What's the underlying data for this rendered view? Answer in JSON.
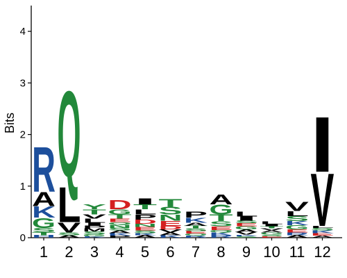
{
  "chart_data": {
    "type": "sequence-logo",
    "ylabel": "Bits",
    "ylim": [
      0,
      4.5
    ],
    "yticks": [
      "0",
      "1",
      "2",
      "3",
      "4"
    ],
    "positions": [
      "1",
      "2",
      "3",
      "4",
      "5",
      "6",
      "7",
      "8",
      "9",
      "10",
      "11",
      "12"
    ],
    "colors": {
      "hydrophobic": "#000000",
      "polar": "#22883a",
      "basic": "#1d4f9c",
      "acidic": "#d42020"
    },
    "letter_color_map": {
      "A": "#000000",
      "V": "#000000",
      "L": "#000000",
      "I": "#000000",
      "P": "#000000",
      "W": "#000000",
      "F": "#000000",
      "M": "#000000",
      "G": "#22883a",
      "S": "#22883a",
      "T": "#22883a",
      "Y": "#22883a",
      "C": "#22883a",
      "Q": "#22883a",
      "N": "#22883a",
      "K": "#1d4f9c",
      "R": "#1d4f9c",
      "H": "#1d4f9c",
      "D": "#d42020",
      "E": "#d42020"
    },
    "stacks": [
      [
        [
          "H",
          0.05
        ],
        [
          "T",
          0.06
        ],
        [
          "S",
          0.08
        ],
        [
          "G",
          0.2
        ],
        [
          "K",
          0.22
        ],
        [
          "A",
          0.28
        ],
        [
          "R",
          0.9
        ]
      ],
      [
        [
          "A",
          0.05
        ],
        [
          "S",
          0.05
        ],
        [
          "V",
          0.2
        ],
        [
          "L",
          0.7
        ],
        [
          "Q",
          1.9
        ]
      ],
      [
        [
          "K",
          0.03
        ],
        [
          "G",
          0.04
        ],
        [
          "S",
          0.05
        ],
        [
          "M",
          0.06
        ],
        [
          "P",
          0.05
        ],
        [
          "I",
          0.06
        ],
        [
          "L",
          0.08
        ],
        [
          "V",
          0.08
        ],
        [
          "T",
          0.1
        ],
        [
          "Y",
          0.1
        ]
      ],
      [
        [
          "P",
          0.04
        ],
        [
          "K",
          0.05
        ],
        [
          "A",
          0.05
        ],
        [
          "S",
          0.05
        ],
        [
          "N",
          0.06
        ],
        [
          "Q",
          0.05
        ],
        [
          "E",
          0.07
        ],
        [
          "T",
          0.08
        ],
        [
          "G",
          0.1
        ],
        [
          "D",
          0.18
        ]
      ],
      [
        [
          "A",
          0.05
        ],
        [
          "K",
          0.04
        ],
        [
          "S",
          0.05
        ],
        [
          "E",
          0.07
        ],
        [
          "N",
          0.06
        ],
        [
          "D",
          0.08
        ],
        [
          "P",
          0.1
        ],
        [
          "L",
          0.1
        ],
        [
          "T",
          0.1
        ],
        [
          "I",
          0.12
        ]
      ],
      [
        [
          "K",
          0.05
        ],
        [
          "A",
          0.05
        ],
        [
          "V",
          0.06
        ],
        [
          "D",
          0.07
        ],
        [
          "E",
          0.1
        ],
        [
          "N",
          0.12
        ],
        [
          "S",
          0.15
        ],
        [
          "T",
          0.15
        ]
      ],
      [
        [
          "R",
          0.04
        ],
        [
          "Q",
          0.04
        ],
        [
          "E",
          0.05
        ],
        [
          "S",
          0.05
        ],
        [
          "T",
          0.05
        ],
        [
          "A",
          0.06
        ],
        [
          "K",
          0.1
        ],
        [
          "P",
          0.12
        ]
      ],
      [
        [
          "R",
          0.05
        ],
        [
          "K",
          0.05
        ],
        [
          "Q",
          0.05
        ],
        [
          "E",
          0.07
        ],
        [
          "S",
          0.1
        ],
        [
          "T",
          0.13
        ],
        [
          "G",
          0.2
        ],
        [
          "A",
          0.2
        ]
      ],
      [
        [
          "S",
          0.03
        ],
        [
          "K",
          0.03
        ],
        [
          "V",
          0.05
        ],
        [
          "A",
          0.05
        ],
        [
          "G",
          0.06
        ],
        [
          "E",
          0.06
        ],
        [
          "S",
          0.05
        ],
        [
          "I",
          0.08
        ],
        [
          "L",
          0.1
        ]
      ],
      [
        [
          "E",
          0.03
        ],
        [
          "S",
          0.03
        ],
        [
          "G",
          0.04
        ],
        [
          "A",
          0.04
        ],
        [
          "V",
          0.04
        ],
        [
          "T",
          0.04
        ],
        [
          "I",
          0.04
        ],
        [
          "L",
          0.05
        ]
      ],
      [
        [
          "A",
          0.05
        ],
        [
          "R",
          0.05
        ],
        [
          "E",
          0.06
        ],
        [
          "G",
          0.08
        ],
        [
          "K",
          0.08
        ],
        [
          "S",
          0.1
        ],
        [
          "L",
          0.1
        ],
        [
          "V",
          0.18
        ]
      ],
      [
        [
          "A",
          0.04
        ],
        [
          "E",
          0.05
        ],
        [
          "K",
          0.05
        ],
        [
          "S",
          0.05
        ],
        [
          "L",
          0.04
        ],
        [
          "V",
          1.05
        ],
        [
          "I",
          1.1
        ]
      ]
    ]
  }
}
